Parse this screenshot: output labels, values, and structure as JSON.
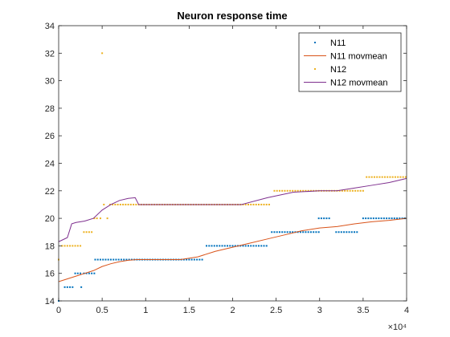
{
  "chart_data": {
    "type": "line",
    "title": "Neuron response time",
    "xlabel": "",
    "ylabel": "",
    "xlim": [
      0,
      40000
    ],
    "ylim": [
      14,
      34
    ],
    "x_ticks": [
      0,
      5000,
      10000,
      15000,
      20000,
      25000,
      30000,
      35000,
      40000
    ],
    "x_tick_labels": [
      "0",
      "0.5",
      "1",
      "1.5",
      "2",
      "2.5",
      "3",
      "3.5",
      "4"
    ],
    "x_exponent_label": "×10⁴",
    "y_ticks": [
      14,
      16,
      18,
      20,
      22,
      24,
      26,
      28,
      30,
      32,
      34
    ],
    "y_tick_labels": [
      "14",
      "16",
      "18",
      "20",
      "22",
      "24",
      "26",
      "28",
      "30",
      "32",
      "34"
    ],
    "grid": false,
    "legend_position": "top-right",
    "series": [
      {
        "name": "N11",
        "style": "points",
        "color": "#0072BD",
        "segments": [
          {
            "x": [
              0
            ],
            "y": 14
          },
          {
            "x": [
              700,
              1000,
              1300,
              1600
            ],
            "y": 15
          },
          {
            "x": [
              1900,
              2200,
              2500
            ],
            "y": 16
          },
          {
            "x": [
              2600
            ],
            "y": 15
          },
          {
            "x": [
              2900,
              3200,
              3500,
              3800,
              4100
            ],
            "y": 16
          },
          {
            "x_start": 4200,
            "x_end": 16500,
            "step": 300,
            "y": 17
          },
          {
            "x_start": 17000,
            "x_end": 23900,
            "step": 300,
            "y": 18
          },
          {
            "x_start": 24500,
            "x_end": 29900,
            "step": 300,
            "y": 19
          },
          {
            "x_start": 29900,
            "x_end": 31300,
            "step": 300,
            "y": 20
          },
          {
            "x_start": 31900,
            "x_end": 34500,
            "step": 300,
            "y": 19
          },
          {
            "x_start": 35000,
            "x_end": 40000,
            "step": 300,
            "y": 20
          }
        ]
      },
      {
        "name": "N11 movmean",
        "style": "line",
        "color": "#D95319",
        "x": [
          0,
          2000,
          3000,
          4000,
          5000,
          6000,
          7000,
          8000,
          9000,
          10000,
          12000,
          14000,
          16000,
          18000,
          20000,
          22000,
          24000,
          26000,
          28000,
          30000,
          32000,
          34000,
          36000,
          38000,
          40000
        ],
        "y": [
          15.4,
          15.8,
          16.0,
          16.2,
          16.5,
          16.7,
          16.85,
          16.95,
          17.0,
          17.0,
          17.0,
          17.0,
          17.2,
          17.6,
          17.9,
          18.2,
          18.5,
          18.8,
          19.1,
          19.3,
          19.4,
          19.6,
          19.75,
          19.85,
          20.0
        ]
      },
      {
        "name": "N12",
        "style": "points",
        "color": "#EDB120",
        "segments": [
          {
            "x": [
              0
            ],
            "y": 17
          },
          {
            "x": [
              400,
              700,
              1000,
              1300,
              1600,
              1900,
              2200,
              2500
            ],
            "y": 18
          },
          {
            "x": [
              2900,
              3200,
              3500,
              3800
            ],
            "y": 19
          },
          {
            "x": [
              4100,
              4400
            ],
            "y": 20
          },
          {
            "x": [
              4800
            ],
            "y": 20
          },
          {
            "x": [
              5000
            ],
            "y": 32
          },
          {
            "x": [
              5200
            ],
            "y": 21
          },
          {
            "x": [
              5600
            ],
            "y": 20
          },
          {
            "x_start": 5900,
            "x_end": 24400,
            "step": 300,
            "y": 21
          },
          {
            "x_start": 24800,
            "x_end": 35000,
            "step": 300,
            "y": 22
          },
          {
            "x_start": 35400,
            "x_end": 40000,
            "step": 300,
            "y": 23
          }
        ]
      },
      {
        "name": "N12 movmean",
        "style": "line",
        "color": "#7E2F8E",
        "x": [
          0,
          1000,
          1500,
          2000,
          3000,
          4000,
          5000,
          6000,
          7000,
          8000,
          8800,
          9200,
          12000,
          16000,
          20000,
          21000,
          24000,
          27000,
          30000,
          32000,
          34000,
          36000,
          38000,
          40000
        ],
        "y": [
          18.3,
          18.6,
          19.6,
          19.7,
          19.8,
          20.0,
          20.6,
          21.0,
          21.3,
          21.45,
          21.5,
          21.0,
          21.0,
          21.0,
          21.0,
          21.0,
          21.5,
          21.9,
          22.0,
          22.0,
          22.2,
          22.4,
          22.6,
          22.9
        ]
      }
    ]
  }
}
